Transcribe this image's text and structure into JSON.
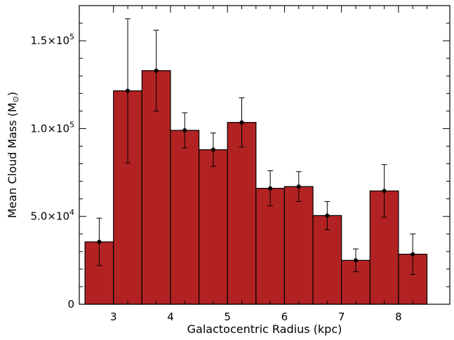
{
  "chart_data": {
    "type": "bar",
    "xlabel": "Galactocentric Radius (kpc)",
    "ylabel": "Mean Cloud Mass (M",
    "ylabel_unit_symbol": "⊙",
    "xlim": [
      2.4,
      8.9
    ],
    "ylim": [
      0,
      170000
    ],
    "x_ticks": [
      3,
      4,
      5,
      6,
      7,
      8
    ],
    "y_ticks": [
      {
        "value": 0,
        "mantissa": "0",
        "exponent": ""
      },
      {
        "value": 50000,
        "mantissa": "5.0×10",
        "exponent": "4"
      },
      {
        "value": 100000,
        "mantissa": "1.0×10",
        "exponent": "5"
      },
      {
        "value": 150000,
        "mantissa": "1.5×10",
        "exponent": "5"
      }
    ],
    "bin_width": 0.5,
    "bin_centers": [
      2.75,
      3.25,
      3.75,
      4.25,
      4.75,
      5.25,
      5.75,
      6.25,
      6.75,
      7.25,
      7.75,
      8.25
    ],
    "values": [
      35500,
      121500,
      133000,
      99000,
      88000,
      103500,
      66000,
      67000,
      50500,
      25000,
      64500,
      28500
    ],
    "errors": [
      13500,
      41000,
      23000,
      10000,
      9500,
      14000,
      10000,
      8500,
      8000,
      6500,
      15000,
      11500
    ],
    "bar_color": "#b22222",
    "edge_color": "#000000",
    "grid": false
  }
}
